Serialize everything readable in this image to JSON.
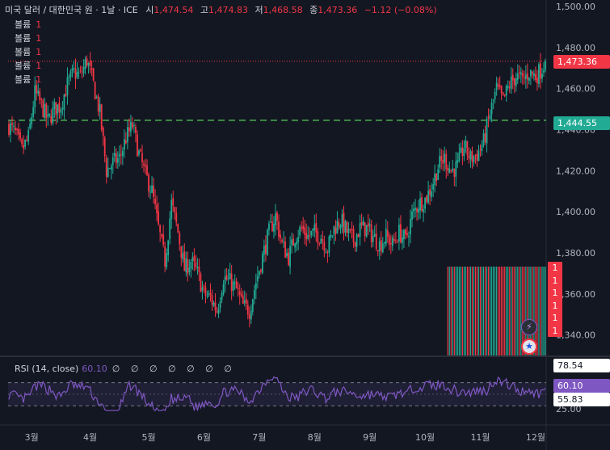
{
  "header": {
    "symbol": "미국 달러 / 대한민국 원 · 1날 · ICE",
    "open_label": "시",
    "open": "1,474.54",
    "high_label": "고",
    "high": "1,474.83",
    "low_label": "저",
    "low": "1,468.58",
    "close_label": "종",
    "close": "1,473.36",
    "change": "−1.12 (−0.08%)"
  },
  "volume_legend": [
    {
      "label": "볼륨",
      "value": "1"
    },
    {
      "label": "볼륨",
      "value": "1"
    },
    {
      "label": "볼륨",
      "value": "1"
    },
    {
      "label": "볼륨",
      "value": "1"
    },
    {
      "label": "볼륨",
      "value": "1"
    }
  ],
  "volume_badges": [
    "1",
    "1",
    "1",
    "1",
    "1",
    "1"
  ],
  "price_badge": "1,473.36",
  "level_badge": "1,444.55",
  "rsi": {
    "label": "RSI (14, close)",
    "value": "60.10",
    "na": "∅ ∅ ∅ ∅ ∅ ∅ ∅",
    "badge_upper": "78.54",
    "badge_value": "60.10",
    "badge_lower": "55.83"
  },
  "colors": {
    "up": "#22ab94",
    "down": "#f23645",
    "rsi": "#7e57c2",
    "level_line": "#4caf50",
    "background": "#131722"
  },
  "icons": [
    "lightning-icon",
    "us-flag-icon"
  ],
  "chart_data": [
    {
      "type": "candlestick",
      "title": "미국 달러 / 대한민국 원 · 1날 · ICE",
      "ylim": [
        1330,
        1500
      ],
      "y_ticks": [
        "1,500.00",
        "1,480.00",
        "1,460.00",
        "1,440.00",
        "1,420.00",
        "1,400.00",
        "1,380.00",
        "1,360.00",
        "1,340.00"
      ],
      "y_tick_values": [
        1500,
        1480,
        1460,
        1440,
        1420,
        1400,
        1380,
        1360,
        1340
      ],
      "x_ticks": [
        "3월",
        "4월",
        "5월",
        "6월",
        "7월",
        "8월",
        "9월",
        "10월",
        "11월",
        "12월"
      ],
      "x_tick_index": [
        14,
        50,
        86,
        120,
        154,
        188,
        222,
        256,
        290,
        324
      ],
      "last_price": 1473.36,
      "reference_level": 1444.55,
      "close_path": [
        [
          0,
          1442
        ],
        [
          4,
          1438
        ],
        [
          8,
          1430
        ],
        [
          12,
          1436
        ],
        [
          16,
          1458
        ],
        [
          20,
          1452
        ],
        [
          24,
          1444
        ],
        [
          28,
          1450
        ],
        [
          32,
          1452
        ],
        [
          36,
          1462
        ],
        [
          40,
          1468
        ],
        [
          44,
          1466
        ],
        [
          48,
          1474
        ],
        [
          52,
          1462
        ],
        [
          56,
          1448
        ],
        [
          60,
          1420
        ],
        [
          64,
          1424
        ],
        [
          68,
          1426
        ],
        [
          72,
          1436
        ],
        [
          76,
          1442
        ],
        [
          80,
          1428
        ],
        [
          84,
          1418
        ],
        [
          88,
          1410
        ],
        [
          92,
          1392
        ],
        [
          96,
          1376
        ],
        [
          100,
          1404
        ],
        [
          104,
          1390
        ],
        [
          108,
          1372
        ],
        [
          112,
          1376
        ],
        [
          116,
          1370
        ],
        [
          120,
          1360
        ],
        [
          124,
          1358
        ],
        [
          128,
          1352
        ],
        [
          132,
          1368
        ],
        [
          136,
          1366
        ],
        [
          140,
          1362
        ],
        [
          144,
          1354
        ],
        [
          148,
          1352
        ],
        [
          152,
          1366
        ],
        [
          156,
          1378
        ],
        [
          160,
          1390
        ],
        [
          164,
          1398
        ],
        [
          168,
          1384
        ],
        [
          172,
          1378
        ],
        [
          176,
          1388
        ],
        [
          180,
          1392
        ],
        [
          184,
          1388
        ],
        [
          188,
          1390
        ],
        [
          192,
          1388
        ],
        [
          196,
          1382
        ],
        [
          200,
          1392
        ],
        [
          204,
          1396
        ],
        [
          208,
          1390
        ],
        [
          212,
          1386
        ],
        [
          216,
          1392
        ],
        [
          220,
          1392
        ],
        [
          224,
          1388
        ],
        [
          228,
          1384
        ],
        [
          232,
          1388
        ],
        [
          236,
          1384
        ],
        [
          240,
          1390
        ],
        [
          244,
          1386
        ],
        [
          248,
          1398
        ],
        [
          252,
          1404
        ],
        [
          256,
          1406
        ],
        [
          260,
          1412
        ],
        [
          264,
          1422
        ],
        [
          268,
          1426
        ],
        [
          272,
          1420
        ],
        [
          276,
          1422
        ],
        [
          280,
          1432
        ],
        [
          284,
          1426
        ],
        [
          288,
          1428
        ],
        [
          292,
          1434
        ],
        [
          296,
          1448
        ],
        [
          300,
          1460
        ],
        [
          304,
          1454
        ],
        [
          308,
          1462
        ],
        [
          312,
          1466
        ],
        [
          316,
          1464
        ],
        [
          320,
          1468
        ],
        [
          324,
          1466
        ],
        [
          328,
          1470
        ],
        [
          330,
          1473.36
        ]
      ]
    },
    {
      "type": "line",
      "title": "RSI (14, close)",
      "last_value": 60.1,
      "upper_band": 78.54,
      "lower_band": 55.83,
      "band_fill": "#7e57c2",
      "bar_count": 331
    }
  ]
}
